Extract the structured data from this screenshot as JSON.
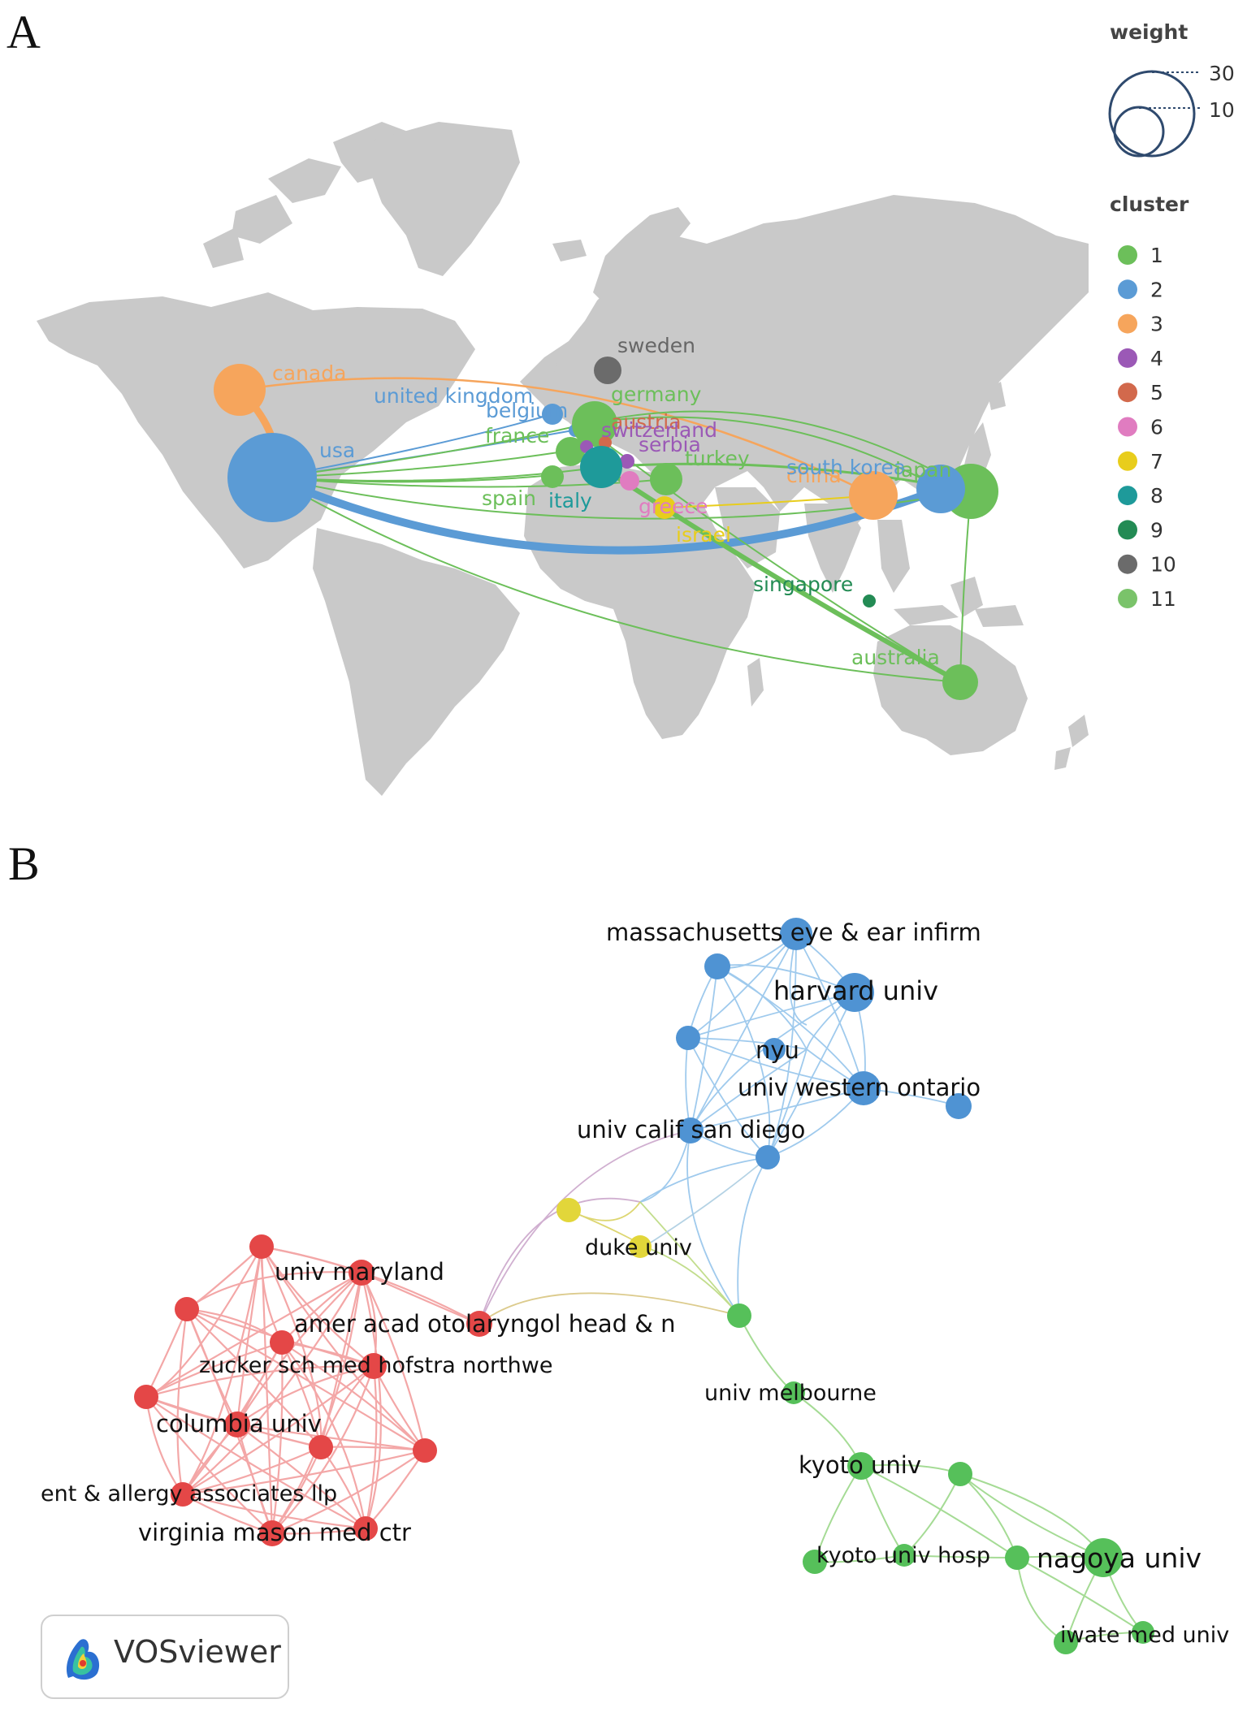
{
  "panels": {
    "a": "A",
    "b": "B"
  },
  "legend": {
    "weight_title": "weight",
    "weight_values": [
      "30",
      "10"
    ],
    "cluster_title": "cluster",
    "clusters": [
      {
        "label": "1",
        "color": "#6cbf5a"
      },
      {
        "label": "2",
        "color": "#5b9bd5"
      },
      {
        "label": "3",
        "color": "#f6a55c"
      },
      {
        "label": "4",
        "color": "#9b59b6"
      },
      {
        "label": "5",
        "color": "#d2694c"
      },
      {
        "label": "6",
        "color": "#e07cc0"
      },
      {
        "label": "7",
        "color": "#e8cd1c"
      },
      {
        "label": "8",
        "color": "#1e9a9a"
      },
      {
        "label": "9",
        "color": "#238b54"
      },
      {
        "label": "10",
        "color": "#6b6b6b"
      },
      {
        "label": "11",
        "color": "#7ac36a"
      }
    ]
  },
  "countries": {
    "canada": "canada",
    "usa": "usa",
    "united_kingdom": "united kingdom",
    "belgium": "belgium",
    "germany": "germany",
    "sweden": "sweden",
    "austria": "austria",
    "switzerland": "switzerland",
    "france": "france",
    "serbia": "serbia",
    "turkey": "turkey",
    "spain": "spain",
    "italy": "italy",
    "greece": "greece",
    "israel": "israel",
    "china": "china",
    "south_korea": "south korea",
    "japan": "japan",
    "singapore": "singapore",
    "australia": "australia"
  },
  "institutions": {
    "massachusetts": "massachusetts eye & ear infirm",
    "harvard": "harvard univ",
    "nyu": "nyu",
    "western_ontario": "univ western ontario",
    "calif_san_diego": "univ calif san diego",
    "duke": "duke univ",
    "maryland": "univ maryland",
    "amer_acad": "amer acad otolaryngol head & n",
    "zucker": "zucker sch med hofstra northwe",
    "columbia": "columbia univ",
    "ent_allergy": "ent & allergy associates llp",
    "virginia_mason": "virginia mason med ctr",
    "melbourne": "univ melbourne",
    "kyoto": "kyoto univ",
    "kyoto_hosp": "kyoto univ hosp",
    "nagoya": "nagoya univ",
    "iwate": "iwate med univ"
  },
  "logo": {
    "text": "VOSviewer"
  }
}
